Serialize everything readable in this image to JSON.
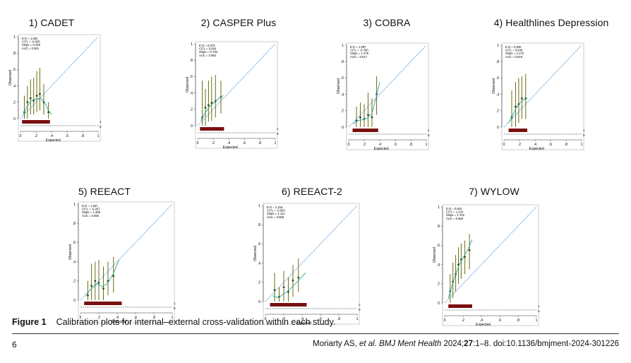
{
  "figure": {
    "label": "Figure 1",
    "caption": "Calibration plots for internal–external cross-validation within each study."
  },
  "footer": {
    "page_number": "6",
    "cite_authors": "Moriarty AS, ",
    "cite_etal": "et al. BMJ Ment Health",
    "cite_year": " 2024;",
    "cite_volume": "27",
    "cite_rest": ":1–8. doi:10.1136/bmjment-2024-301226"
  },
  "colors": {
    "reference_line": "#3b8fd6",
    "point_color": "#2a4a1a",
    "ci_color": "#6b6b10",
    "smooth_color": "#2aa7a0",
    "rug_color": "#7a1010"
  },
  "chart_data": [
    {
      "type": "scatter",
      "title": "1)  CADET",
      "xlabel": "Expected",
      "ylabel": "Observed",
      "xlim": [
        0,
        1
      ],
      "ylim": [
        0,
        1
      ],
      "x_ticks": [
        "0",
        ".2",
        ".4",
        ".6",
        ".8",
        "1"
      ],
      "y_ticks": [
        "0",
        ".2",
        ".4",
        ".6",
        ".8",
        "1"
      ],
      "stats": [
        "E:O = 1.052",
        "CITL = -0.005",
        "Slope = 0.246",
        "AUC = 0.551"
      ],
      "rug_labels": [
        "1",
        "0"
      ],
      "points": [
        {
          "x": 0.05,
          "y": 0.08,
          "lo": 0.0,
          "hi": 0.28
        },
        {
          "x": 0.09,
          "y": 0.2,
          "lo": 0.0,
          "hi": 0.4
        },
        {
          "x": 0.13,
          "y": 0.25,
          "lo": 0.05,
          "hi": 0.48
        },
        {
          "x": 0.17,
          "y": 0.22,
          "lo": 0.05,
          "hi": 0.5
        },
        {
          "x": 0.21,
          "y": 0.28,
          "lo": 0.08,
          "hi": 0.58
        },
        {
          "x": 0.25,
          "y": 0.3,
          "lo": 0.1,
          "hi": 0.62
        },
        {
          "x": 0.3,
          "y": 0.2,
          "lo": 0.05,
          "hi": 0.42
        },
        {
          "x": 0.36,
          "y": 0.08,
          "lo": 0.0,
          "hi": 0.2
        }
      ],
      "smooth": [
        [
          0.03,
          0.05
        ],
        [
          0.08,
          0.14
        ],
        [
          0.14,
          0.22
        ],
        [
          0.2,
          0.24
        ],
        [
          0.26,
          0.25
        ],
        [
          0.31,
          0.2
        ],
        [
          0.36,
          0.1
        ],
        [
          0.4,
          0.05
        ]
      ],
      "rug_range": [
        0.02,
        0.38
      ]
    },
    {
      "type": "scatter",
      "title": "2) CASPER Plus",
      "xlabel": "Expected",
      "ylabel": "Observed",
      "xlim": [
        0,
        1
      ],
      "ylim": [
        0,
        1
      ],
      "x_ticks": [
        "0",
        ".2",
        ".4",
        ".6",
        ".8",
        "1"
      ],
      "y_ticks": [
        "0",
        ".2",
        ".4",
        ".6",
        ".8",
        "1"
      ],
      "stats": [
        "E:O = 0.679",
        "CITL = 0.000",
        "Slope = 0.730",
        "AUC = 0.562"
      ],
      "rug_labels": [
        "1",
        "0"
      ],
      "points": [
        {
          "x": 0.06,
          "y": 0.1,
          "lo": 0.0,
          "hi": 0.55
        },
        {
          "x": 0.1,
          "y": 0.22,
          "lo": 0.0,
          "hi": 0.45
        },
        {
          "x": 0.14,
          "y": 0.25,
          "lo": 0.05,
          "hi": 0.55
        },
        {
          "x": 0.18,
          "y": 0.28,
          "lo": 0.06,
          "hi": 0.6
        },
        {
          "x": 0.23,
          "y": 0.3,
          "lo": 0.1,
          "hi": 0.62
        },
        {
          "x": 0.3,
          "y": 0.35,
          "lo": 0.15,
          "hi": 0.55
        }
      ],
      "smooth": [
        [
          0.04,
          0.06
        ],
        [
          0.1,
          0.16
        ],
        [
          0.16,
          0.24
        ],
        [
          0.22,
          0.29
        ],
        [
          0.28,
          0.34
        ],
        [
          0.33,
          0.37
        ]
      ],
      "rug_range": [
        0.03,
        0.34
      ]
    },
    {
      "type": "scatter",
      "title": "3) COBRA",
      "xlabel": "Expected",
      "ylabel": "Observed",
      "xlim": [
        0,
        1
      ],
      "ylim": [
        0,
        1
      ],
      "x_ticks": [
        "0",
        ".2",
        ".4",
        ".6",
        ".8",
        "1"
      ],
      "y_ticks": [
        "0",
        ".2",
        ".4",
        ".6",
        ".8",
        "1"
      ],
      "stats": [
        "E:O = 1.087",
        "CITL = -0.780",
        "Slope = 1.178",
        "AUC = 0.617"
      ],
      "rug_labels": [
        "1",
        "0"
      ],
      "points": [
        {
          "x": 0.1,
          "y": 0.08,
          "lo": 0.0,
          "hi": 0.25
        },
        {
          "x": 0.15,
          "y": 0.12,
          "lo": 0.0,
          "hi": 0.3
        },
        {
          "x": 0.2,
          "y": 0.1,
          "lo": 0.0,
          "hi": 0.28
        },
        {
          "x": 0.25,
          "y": 0.15,
          "lo": 0.0,
          "hi": 0.42
        },
        {
          "x": 0.3,
          "y": 0.12,
          "lo": 0.0,
          "hi": 0.35
        },
        {
          "x": 0.36,
          "y": 0.4,
          "lo": 0.15,
          "hi": 0.62
        }
      ],
      "smooth": [
        [
          0.06,
          0.04
        ],
        [
          0.12,
          0.08
        ],
        [
          0.18,
          0.09
        ],
        [
          0.24,
          0.11
        ],
        [
          0.3,
          0.17
        ],
        [
          0.36,
          0.38
        ],
        [
          0.4,
          0.55
        ]
      ],
      "rug_range": [
        0.05,
        0.38
      ]
    },
    {
      "type": "scatter",
      "title": "4) Healthlines Depression",
      "xlabel": "Expected",
      "ylabel": "Observed",
      "xlim": [
        0,
        1
      ],
      "ylim": [
        0,
        1
      ],
      "x_ticks": [
        "0",
        ".2",
        ".4",
        ".6",
        ".8",
        "1"
      ],
      "y_ticks": [
        "0",
        ".2",
        ".4",
        ".6",
        ".8",
        "1"
      ],
      "stats": [
        "E:O = 0.930",
        "CITL = 0.048",
        "Slope = 1.173",
        "AUC = 0.619"
      ],
      "rug_labels": [
        "1",
        "0"
      ],
      "points": [
        {
          "x": 0.1,
          "y": 0.12,
          "lo": 0.0,
          "hi": 0.45
        },
        {
          "x": 0.15,
          "y": 0.25,
          "lo": 0.0,
          "hi": 0.55
        },
        {
          "x": 0.19,
          "y": 0.28,
          "lo": 0.05,
          "hi": 0.6
        },
        {
          "x": 0.23,
          "y": 0.35,
          "lo": 0.1,
          "hi": 0.62
        },
        {
          "x": 0.28,
          "y": 0.35,
          "lo": 0.1,
          "hi": 0.65
        }
      ],
      "smooth": [
        [
          0.06,
          0.05
        ],
        [
          0.11,
          0.14
        ],
        [
          0.16,
          0.24
        ],
        [
          0.21,
          0.3
        ],
        [
          0.26,
          0.34
        ],
        [
          0.3,
          0.35
        ]
      ],
      "rug_range": [
        0.06,
        0.3
      ]
    },
    {
      "type": "scatter",
      "title": "5) REEACT",
      "xlabel": "Expected",
      "ylabel": "Observed",
      "xlim": [
        0,
        1
      ],
      "ylim": [
        0,
        1
      ],
      "x_ticks": [
        "0",
        ".2",
        ".4",
        ".6",
        ".8",
        "1"
      ],
      "y_ticks": [
        "0",
        ".2",
        ".4",
        ".6",
        ".8",
        "1"
      ],
      "stats": [
        "E:O = 1.267",
        "CITL = -0.257",
        "Slope = 1.495",
        "AUC = 0.556"
      ],
      "rug_labels": [
        "1",
        "0"
      ],
      "points": [
        {
          "x": 0.08,
          "y": 0.05,
          "lo": 0.0,
          "hi": 0.2
        },
        {
          "x": 0.12,
          "y": 0.15,
          "lo": 0.0,
          "hi": 0.38
        },
        {
          "x": 0.16,
          "y": 0.2,
          "lo": 0.0,
          "hi": 0.4
        },
        {
          "x": 0.2,
          "y": 0.18,
          "lo": 0.0,
          "hi": 0.42
        },
        {
          "x": 0.25,
          "y": 0.12,
          "lo": 0.0,
          "hi": 0.35
        },
        {
          "x": 0.3,
          "y": 0.2,
          "lo": 0.05,
          "hi": 0.4
        },
        {
          "x": 0.36,
          "y": 0.25,
          "lo": 0.08,
          "hi": 0.45
        }
      ],
      "smooth": [
        [
          0.05,
          0.05
        ],
        [
          0.12,
          0.12
        ],
        [
          0.18,
          0.17
        ],
        [
          0.24,
          0.14
        ],
        [
          0.3,
          0.18
        ],
        [
          0.36,
          0.28
        ],
        [
          0.42,
          0.42
        ]
      ],
      "rug_range": [
        0.04,
        0.45
      ]
    },
    {
      "type": "scatter",
      "title": "6) REEACT-2",
      "xlabel": "Expected",
      "ylabel": "Observed",
      "xlim": [
        0,
        1
      ],
      "ylim": [
        0,
        1
      ],
      "x_ticks": [
        "0",
        ".2",
        ".4",
        ".6",
        ".8",
        "1"
      ],
      "y_ticks": [
        "0",
        ".2",
        ".4",
        ".6",
        ".8",
        "1"
      ],
      "stats": [
        "E:O = 2.218",
        "CITL = -0.933",
        "Slope = 1.111",
        "AUC = 0.588"
      ],
      "rug_labels": [
        "1",
        "0"
      ],
      "points": [
        {
          "x": 0.1,
          "y": 0.12,
          "lo": 0.0,
          "hi": 0.3
        },
        {
          "x": 0.15,
          "y": 0.05,
          "lo": 0.0,
          "hi": 0.15
        },
        {
          "x": 0.2,
          "y": 0.15,
          "lo": 0.0,
          "hi": 0.32
        },
        {
          "x": 0.25,
          "y": 0.1,
          "lo": 0.0,
          "hi": 0.25
        },
        {
          "x": 0.3,
          "y": 0.22,
          "lo": 0.05,
          "hi": 0.38
        },
        {
          "x": 0.36,
          "y": 0.25,
          "lo": 0.1,
          "hi": 0.45
        }
      ],
      "smooth": [
        [
          0.08,
          0.06
        ],
        [
          0.14,
          0.04
        ],
        [
          0.2,
          0.08
        ],
        [
          0.26,
          0.12
        ],
        [
          0.32,
          0.18
        ],
        [
          0.38,
          0.24
        ],
        [
          0.44,
          0.3
        ]
      ],
      "rug_range": [
        0.05,
        0.45
      ]
    },
    {
      "type": "scatter",
      "title": "7) WYLOW",
      "xlabel": "Expected",
      "ylabel": "Observed",
      "xlim": [
        0,
        1
      ],
      "ylim": [
        0,
        1
      ],
      "x_ticks": [
        "0",
        ".2",
        ".4",
        ".6",
        ".8",
        "1"
      ],
      "y_ticks": [
        "0",
        ".2",
        ".4",
        ".6",
        ".8",
        "1"
      ],
      "stats": [
        "E:O = 0.624",
        "CITL = 1.134",
        "Slope = 1.702",
        "AUC = 0.666"
      ],
      "rug_labels": [
        "1",
        "0"
      ],
      "points": [
        {
          "x": 0.06,
          "y": 0.12,
          "lo": 0.0,
          "hi": 0.3
        },
        {
          "x": 0.09,
          "y": 0.22,
          "lo": 0.05,
          "hi": 0.42
        },
        {
          "x": 0.12,
          "y": 0.3,
          "lo": 0.12,
          "hi": 0.5
        },
        {
          "x": 0.15,
          "y": 0.4,
          "lo": 0.2,
          "hi": 0.58
        },
        {
          "x": 0.18,
          "y": 0.45,
          "lo": 0.25,
          "hi": 0.62
        },
        {
          "x": 0.22,
          "y": 0.48,
          "lo": 0.3,
          "hi": 0.65
        },
        {
          "x": 0.27,
          "y": 0.55,
          "lo": 0.35,
          "hi": 0.72
        }
      ],
      "smooth": [
        [
          0.04,
          0.05
        ],
        [
          0.08,
          0.18
        ],
        [
          0.12,
          0.3
        ],
        [
          0.16,
          0.4
        ],
        [
          0.2,
          0.47
        ],
        [
          0.25,
          0.55
        ],
        [
          0.3,
          0.66
        ]
      ],
      "rug_range": [
        0.04,
        0.3
      ]
    }
  ]
}
